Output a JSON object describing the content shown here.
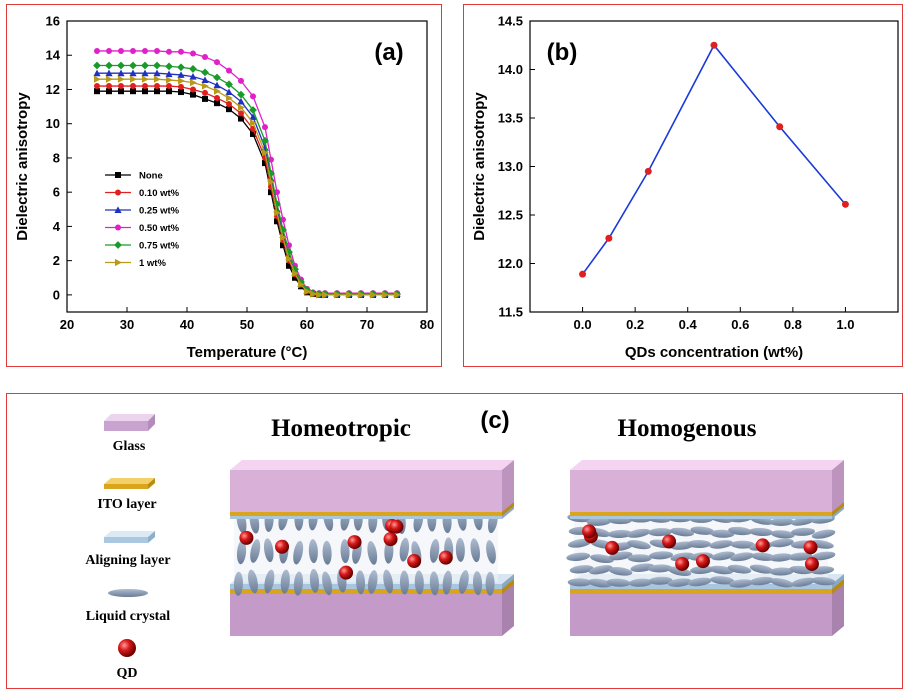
{
  "chart_data": [
    {
      "panel": "(a)",
      "type": "line",
      "xlabel": "Temperature (°C)",
      "ylabel": "Dielectric anisotropy",
      "xlim": [
        20,
        80
      ],
      "ylim": [
        -1,
        16
      ],
      "xticks": [
        20,
        30,
        40,
        50,
        60,
        70,
        80
      ],
      "yticks": [
        0,
        2,
        4,
        6,
        8,
        10,
        12,
        14,
        16
      ],
      "legend_position": "lower-left",
      "x": [
        25,
        27,
        29,
        31,
        33,
        35,
        37,
        39,
        41,
        43,
        45,
        47,
        49,
        51,
        53,
        54,
        55,
        56,
        57,
        58,
        59,
        60,
        61,
        62,
        63,
        65,
        67,
        69,
        71,
        73,
        75
      ],
      "series": [
        {
          "name": "None",
          "color": "#000000",
          "marker": "square",
          "values": [
            11.9,
            11.9,
            11.9,
            11.9,
            11.9,
            11.9,
            11.9,
            11.85,
            11.7,
            11.45,
            11.2,
            10.85,
            10.3,
            9.4,
            7.7,
            6.0,
            4.3,
            2.9,
            1.7,
            1.0,
            0.5,
            0.15,
            0.05,
            0.0,
            0.0,
            0.0,
            0.0,
            0.0,
            0.0,
            0.0,
            0.0
          ]
        },
        {
          "name": "0.10 wt%",
          "color": "#e02020",
          "marker": "circle",
          "values": [
            12.2,
            12.2,
            12.2,
            12.2,
            12.2,
            12.2,
            12.2,
            12.15,
            12.0,
            11.8,
            11.5,
            11.15,
            10.6,
            9.7,
            8.0,
            6.3,
            4.6,
            3.2,
            2.0,
            1.2,
            0.6,
            0.2,
            0.05,
            0.0,
            0.0,
            0.0,
            0.0,
            0.0,
            0.0,
            0.0,
            0.0
          ]
        },
        {
          "name": "0.25 wt%",
          "color": "#2030c0",
          "marker": "triangle",
          "values": [
            12.95,
            12.95,
            12.95,
            12.95,
            12.95,
            12.95,
            12.9,
            12.85,
            12.75,
            12.55,
            12.25,
            11.85,
            11.3,
            10.4,
            8.6,
            6.8,
            5.0,
            3.5,
            2.2,
            1.3,
            0.65,
            0.25,
            0.1,
            0.05,
            0.05,
            0.05,
            0.05,
            0.05,
            0.05,
            0.05,
            0.05
          ]
        },
        {
          "name": "0.50 wt%",
          "color": "#e020c8",
          "marker": "circle",
          "values": [
            14.25,
            14.25,
            14.25,
            14.25,
            14.25,
            14.25,
            14.2,
            14.2,
            14.1,
            13.9,
            13.6,
            13.1,
            12.5,
            11.6,
            9.8,
            7.9,
            6.0,
            4.4,
            2.9,
            1.7,
            0.9,
            0.35,
            0.15,
            0.1,
            0.1,
            0.1,
            0.1,
            0.1,
            0.1,
            0.1,
            0.1
          ]
        },
        {
          "name": "0.75 wt%",
          "color": "#1a9a2a",
          "marker": "diamond",
          "values": [
            13.4,
            13.4,
            13.4,
            13.4,
            13.4,
            13.4,
            13.35,
            13.3,
            13.2,
            13.0,
            12.7,
            12.3,
            11.7,
            10.8,
            9.0,
            7.1,
            5.3,
            3.8,
            2.5,
            1.5,
            0.75,
            0.3,
            0.1,
            0.05,
            0.05,
            0.05,
            0.05,
            0.05,
            0.05,
            0.05,
            0.05
          ]
        },
        {
          "name": "1 wt%",
          "color": "#b89a18",
          "marker": "triangle-right",
          "values": [
            12.6,
            12.6,
            12.6,
            12.6,
            12.6,
            12.6,
            12.55,
            12.5,
            12.4,
            12.2,
            11.9,
            11.5,
            10.95,
            10.05,
            8.3,
            6.6,
            4.8,
            3.35,
            2.1,
            1.25,
            0.6,
            0.2,
            0.05,
            0.0,
            0.0,
            0.0,
            0.0,
            0.0,
            0.0,
            0.0,
            0.0
          ]
        }
      ]
    },
    {
      "panel": "(b)",
      "type": "line",
      "xlabel": "QDs concentration (wt%)",
      "ylabel": "Dielectric anisotropy",
      "xlim": [
        -0.2,
        1.2
      ],
      "ylim": [
        11.5,
        14.5
      ],
      "xticks": [
        "0.0",
        "0.2",
        "0.4",
        "0.6",
        "0.8",
        "1.0"
      ],
      "yticks": [
        "11.5",
        "12.0",
        "12.5",
        "13.0",
        "13.5",
        "14.0",
        "14.5"
      ],
      "series": [
        {
          "x": [
            0.0,
            0.1,
            0.25,
            0.5,
            0.75,
            1.0
          ],
          "values": [
            11.89,
            12.26,
            12.95,
            14.25,
            13.41,
            12.61
          ],
          "line_color": "#1a3ad8",
          "marker_color": "#e02020"
        }
      ]
    }
  ],
  "diagram": {
    "panel": "(c)",
    "left_title": "Homeotropic",
    "right_title": "Homogenous",
    "legend": [
      {
        "label": "Glass",
        "icon": "glass-layer-icon",
        "color": "#dcb8e0"
      },
      {
        "label": "ITO layer",
        "icon": "ito-layer-icon",
        "color": "#e8b830"
      },
      {
        "label": "Aligning layer",
        "icon": "aligning-layer-icon",
        "color": "#b8d4ea"
      },
      {
        "label": "Liquid crystal",
        "icon": "liquid-crystal-icon",
        "color": "#8a9cb4"
      },
      {
        "label": "QD",
        "icon": "quantum-dot-icon",
        "color": "#d01818"
      }
    ]
  }
}
